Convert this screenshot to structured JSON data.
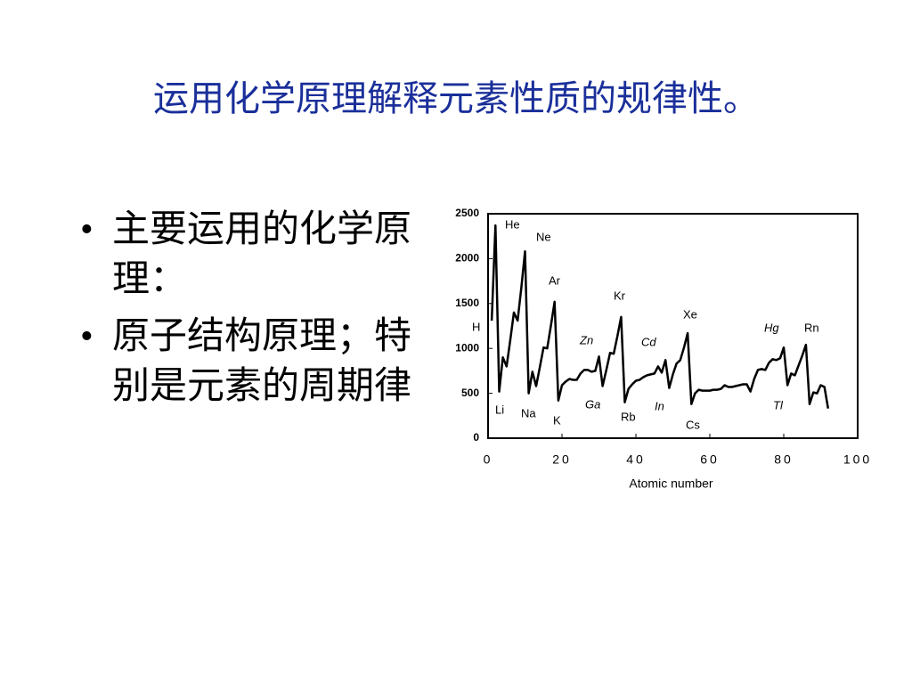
{
  "title": "运用化学原理解释元素性质的规律性。",
  "bullets": [
    "主要运用的化学原理：",
    "原子结构原理；特别是元素的周期律"
  ],
  "chart_data": {
    "type": "line",
    "x_label": "Atomic number",
    "x": [
      1,
      2,
      3,
      4,
      5,
      6,
      7,
      8,
      9,
      10,
      11,
      12,
      13,
      14,
      15,
      16,
      17,
      18,
      19,
      20,
      21,
      22,
      23,
      24,
      25,
      26,
      27,
      28,
      29,
      30,
      31,
      32,
      33,
      34,
      35,
      36,
      37,
      38,
      39,
      40,
      41,
      42,
      43,
      44,
      45,
      46,
      47,
      48,
      49,
      50,
      51,
      52,
      53,
      54,
      55,
      56,
      57,
      58,
      59,
      60,
      61,
      62,
      63,
      64,
      65,
      66,
      67,
      68,
      69,
      70,
      71,
      72,
      73,
      74,
      75,
      76,
      77,
      78,
      79,
      80,
      81,
      82,
      83,
      84,
      85,
      86,
      87,
      88,
      89,
      90,
      91,
      92
    ],
    "series": [
      {
        "name": null,
        "color": "#000000",
        "values": [
          1310,
          2370,
          520,
          900,
          800,
          1090,
          1400,
          1310,
          1680,
          2080,
          500,
          740,
          580,
          790,
          1010,
          1000,
          1250,
          1520,
          420,
          590,
          630,
          660,
          650,
          650,
          720,
          760,
          760,
          740,
          750,
          910,
          580,
          760,
          950,
          940,
          1140,
          1350,
          400,
          550,
          600,
          640,
          650,
          680,
          700,
          710,
          720,
          800,
          730,
          870,
          560,
          710,
          830,
          870,
          1010,
          1170,
          380,
          500,
          540,
          530,
          530,
          530,
          540,
          540,
          550,
          590,
          570,
          570,
          580,
          590,
          600,
          600,
          520,
          660,
          760,
          770,
          760,
          840,
          880,
          870,
          890,
          1010,
          590,
          720,
          700,
          810,
          920,
          1040,
          380,
          510,
          500,
          590,
          570,
          330
        ]
      }
    ],
    "xlim": [
      0,
      100
    ],
    "xticks": [
      0,
      20,
      40,
      60,
      80,
      100
    ],
    "ylim": [
      0,
      2500
    ],
    "yticks": [
      0,
      500,
      1000,
      1500,
      2000,
      2500
    ],
    "annotations": [
      "He",
      "Ne",
      "Ar",
      "Kr",
      "Xe",
      "Rn",
      "H",
      "Li",
      "Na",
      "K",
      "Rb",
      "Cs",
      "Zn",
      "Ga",
      "Cd",
      "In",
      "Hg",
      "Tl"
    ]
  }
}
